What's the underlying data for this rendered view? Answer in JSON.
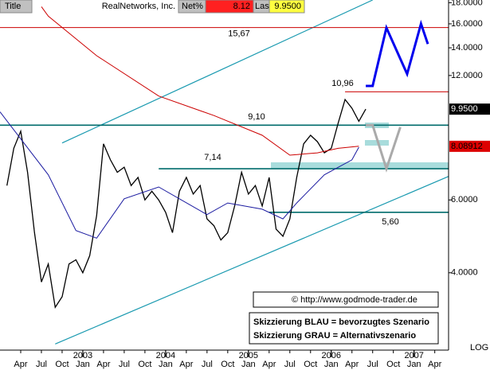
{
  "header": {
    "title": "Title",
    "name": "RealNetworks, Inc.",
    "net_label": "Net%",
    "net_value": "8.12",
    "last_label": "Last",
    "last_value": "9.9500"
  },
  "chart_data": {
    "type": "line",
    "log_scale": true,
    "xlim": [
      "2002-01",
      "2007-06"
    ],
    "ylim": [
      2.6,
      18.27
    ],
    "yticks": [
      {
        "value": 4,
        "label": "4.0000"
      },
      {
        "value": 6,
        "label": "6.0000"
      },
      {
        "value": 12,
        "label": "12.0000"
      },
      {
        "value": 14,
        "label": "14.0000"
      },
      {
        "value": 16,
        "label": "16.0000"
      },
      {
        "value": 18,
        "label": "18.0000"
      }
    ],
    "xticks": [
      {
        "value": "2002-04",
        "label": "Apr"
      },
      {
        "value": "2002-07",
        "label": "Jul"
      },
      {
        "value": "2002-10",
        "label": "Oct"
      },
      {
        "value": "2003-01",
        "label": "Jan"
      },
      {
        "value": "2003-04",
        "label": "Apr"
      },
      {
        "value": "2003-07",
        "label": "Jul"
      },
      {
        "value": "2003-10",
        "label": "Oct"
      },
      {
        "value": "2004-01",
        "label": "Jan"
      },
      {
        "value": "2004-04",
        "label": "Apr"
      },
      {
        "value": "2004-07",
        "label": "Jul"
      },
      {
        "value": "2004-10",
        "label": "Oct"
      },
      {
        "value": "2005-01",
        "label": "Jan"
      },
      {
        "value": "2005-04",
        "label": "Apr"
      },
      {
        "value": "2005-07",
        "label": "Jul"
      },
      {
        "value": "2005-10",
        "label": "Oct"
      },
      {
        "value": "2006-01",
        "label": "Jan"
      },
      {
        "value": "2006-04",
        "label": "Apr"
      },
      {
        "value": "2006-07",
        "label": "Jul"
      },
      {
        "value": "2006-10",
        "label": "Oct"
      },
      {
        "value": "2007-01",
        "label": "Jan"
      },
      {
        "value": "2007-04",
        "label": "Apr"
      }
    ],
    "year_ticks": [
      {
        "value": "2003-01",
        "label": "2003"
      },
      {
        "value": "2004-01",
        "label": "2004"
      },
      {
        "value": "2005-01",
        "label": "2005"
      },
      {
        "value": "2006-01",
        "label": "2006"
      },
      {
        "value": "2007-01",
        "label": "2007"
      }
    ],
    "scale_label": "LOG",
    "series": [
      {
        "color": "#000000",
        "x": [
          "2002-02",
          "2002-03",
          "2002-04",
          "2002-05",
          "2002-06",
          "2002-07",
          "2002-08",
          "2002-09",
          "2002-10",
          "2002-11",
          "2002-12",
          "2003-01",
          "2003-02",
          "2003-03",
          "2003-04",
          "2003-05",
          "2003-06",
          "2003-07",
          "2003-08",
          "2003-09",
          "2003-10",
          "2003-11",
          "2003-12",
          "2004-01",
          "2004-02",
          "2004-03",
          "2004-04",
          "2004-05",
          "2004-06",
          "2004-07",
          "2004-08",
          "2004-09",
          "2004-10",
          "2004-11",
          "2004-12",
          "2005-01",
          "2005-02",
          "2005-03",
          "2005-04",
          "2005-05",
          "2005-06",
          "2005-07",
          "2005-08",
          "2005-09",
          "2005-10",
          "2005-11",
          "2005-12",
          "2006-01",
          "2006-02",
          "2006-03",
          "2006-04",
          "2006-05",
          "2006-06"
        ],
        "values": [
          6.5,
          8.0,
          8.8,
          7.0,
          5.0,
          3.8,
          4.2,
          3.3,
          3.5,
          4.2,
          4.3,
          4.0,
          4.4,
          5.5,
          8.2,
          7.5,
          7.0,
          7.2,
          6.5,
          6.8,
          6.0,
          6.3,
          6.0,
          5.6,
          5.0,
          6.3,
          6.8,
          6.2,
          6.5,
          5.4,
          5.2,
          4.8,
          5.0,
          5.8,
          7.0,
          6.2,
          6.5,
          5.8,
          6.8,
          5.1,
          4.9,
          5.4,
          6.8,
          8.2,
          8.6,
          8.3,
          7.8,
          8.0,
          9.2,
          10.5,
          10.0,
          9.3,
          9.95
        ]
      },
      {
        "color": "#cc0000",
        "x": [
          "2002-07",
          "2002-08",
          "2003-03",
          "2003-12",
          "2004-08",
          "2005-03",
          "2005-07",
          "2005-11",
          "2006-02",
          "2006-05"
        ],
        "values": [
          17.6,
          16.7,
          13.4,
          10.7,
          9.6,
          8.6,
          7.7,
          7.8,
          8.0,
          8.09
        ]
      },
      {
        "color": "#1a1aa0",
        "x": [
          "2002-01",
          "2002-08",
          "2002-12",
          "2003-03",
          "2003-07",
          "2003-12",
          "2004-07",
          "2004-10",
          "2005-03",
          "2005-06",
          "2005-08",
          "2005-12",
          "2006-04",
          "2006-05"
        ],
        "values": [
          9.8,
          6.9,
          5.06,
          4.85,
          6.04,
          6.45,
          5.53,
          5.9,
          5.7,
          5.4,
          5.9,
          6.9,
          7.5,
          8.05
        ]
      },
      {
        "color": "#0000ee",
        "x": [
          "2006-06",
          "2006-07",
          "2006-09",
          "2006-12",
          "2007-02",
          "2007-03"
        ],
        "values": [
          11.32,
          11.32,
          15.65,
          12.1,
          16.0,
          14.3
        ]
      },
      {
        "color": "#aaaaaa",
        "x": [
          "2006-06",
          "2006-07",
          "2006-09",
          "2006-11"
        ],
        "values": [
          9.1,
          9.1,
          7.14,
          9.0
        ]
      }
    ],
    "levels": [
      {
        "value": 15.67,
        "label": "15,67",
        "start": "2002-01",
        "color": "#cc0000"
      },
      {
        "value": 10.96,
        "label": "10,96",
        "start": "2006-03",
        "color": "#cc0000"
      },
      {
        "value": 9.1,
        "label": "9,10",
        "start": "2002-01",
        "color": "#006c6c"
      },
      {
        "value": 7.14,
        "label": "7,14",
        "start": "2003-12",
        "color": "#006c6c"
      },
      {
        "value": 5.6,
        "label": "5,60",
        "start": "2005-04",
        "color": "#006c6c"
      }
    ],
    "trendlines": [
      {
        "x": [
          "2002-10",
          "2006-07"
        ],
        "values": [
          8.24,
          18.27
        ],
        "color": "#1a9ab0"
      },
      {
        "x": [
          "2002-09",
          "2007-06"
        ],
        "values": [
          2.69,
          6.84
        ],
        "color": "#1a9ab0"
      }
    ],
    "markers": [
      {
        "value": 9.95,
        "label": "9.9500",
        "bg": "#000000",
        "fg": "#ffffff"
      },
      {
        "value": 8.08912,
        "label": "8.08912",
        "bg": "#dd0000",
        "fg": "#000000"
      }
    ],
    "copyright": "© http://www.godmode-trader.de",
    "notes": [
      "Skizzierung BLAU = bevorzugtes Szenario",
      "Skizzierung GRAU = Alternativszenario"
    ]
  }
}
